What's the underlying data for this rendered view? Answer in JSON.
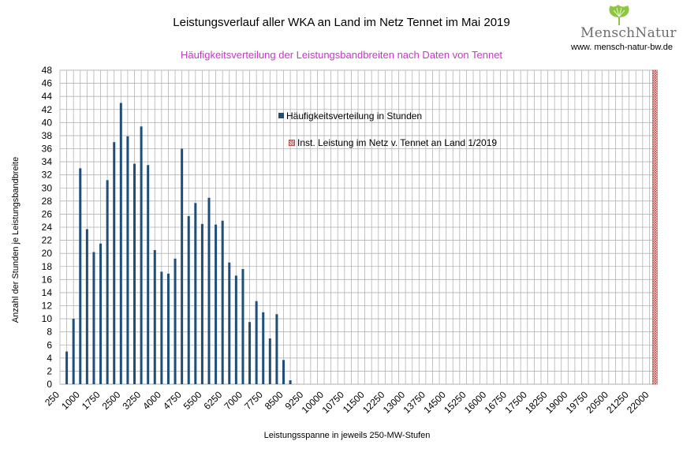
{
  "chart_data": {
    "type": "bar",
    "title": "Leistungsverlauf aller WKA an Land im Netz  Tennet im Mai 2019",
    "subtitle": "Häufigkeitsverteilung der Leistungsbandbreiten nach Daten von Tennet",
    "xlabel": "Leistungsspanne in jeweils 250-MW-Stufen",
    "ylabel": "Anzahl der Stunden je Leistungsbandbreite",
    "ylim": [
      0,
      48
    ],
    "ytick_step": 2,
    "xlim": [
      250,
      22250
    ],
    "x_tick_labels": [
      "250",
      "1000",
      "1750",
      "2500",
      "3250",
      "4000",
      "4750",
      "5500",
      "6250",
      "7000",
      "7750",
      "8500",
      "9250",
      "10000",
      "10750",
      "11500",
      "12250",
      "13000",
      "13750",
      "14500",
      "15250",
      "16000",
      "16750",
      "17500",
      "18250",
      "19000",
      "19750",
      "20500",
      "21250",
      "22000"
    ],
    "grid": true,
    "series": [
      {
        "name": "Häufigkeitsverteilung in Stunden",
        "color": "#1f4e79",
        "x": [
          500,
          750,
          1000,
          1250,
          1500,
          1750,
          2000,
          2250,
          2500,
          2750,
          3000,
          3250,
          3500,
          3750,
          4000,
          4250,
          4500,
          4750,
          5000,
          5250,
          5500,
          5750,
          6000,
          6250,
          6500,
          6750,
          7000,
          7250,
          7500,
          7750,
          8000,
          8250,
          8500,
          8750
        ],
        "values": [
          5,
          10,
          33,
          23.7,
          20.2,
          21.5,
          31.2,
          37,
          43,
          37.9,
          33.7,
          39.4,
          33.5,
          20.5,
          17.2,
          16.9,
          19.2,
          36,
          25.7,
          27.7,
          24.5,
          28.5,
          24.4,
          25,
          18.6,
          16.6,
          17.6,
          9.5,
          12.7,
          11,
          7,
          10.7,
          3.7,
          0.6
        ]
      },
      {
        "name": "Inst. Leistung im Netz v. Tennet an Land 1/2019",
        "color": "#c0504d",
        "x": [
          22000
        ],
        "values": [
          48
        ]
      }
    ],
    "legend": "inside-top-center"
  },
  "logo": {
    "text": "MenschNatur",
    "url": "www. mensch-natur-bw.de"
  }
}
